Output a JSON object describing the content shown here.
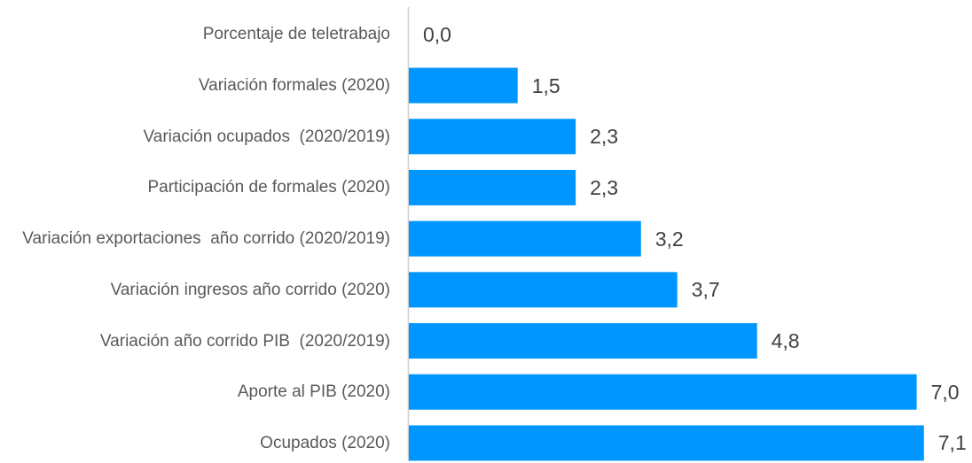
{
  "chart_data": {
    "type": "bar",
    "orientation": "horizontal",
    "categories": [
      "Porcentaje de teletrabajo",
      "Variación formales (2020)",
      "Variación ocupados  (2020/2019)",
      "Participación de formales (2020)",
      "Variación exportaciones  año corrido (2020/2019)",
      "Variación ingresos año corrido (2020)",
      "Variación año corrido PIB  (2020/2019)",
      "Aporte al PIB (2020)",
      "Ocupados (2020)"
    ],
    "values": [
      0.0,
      1.5,
      2.3,
      2.3,
      3.2,
      3.7,
      4.8,
      7.0,
      7.1
    ],
    "value_labels": [
      "0,0",
      "1,5",
      "2,3",
      "2,3",
      "3,2",
      "3,7",
      "4,8",
      "7,0",
      "7,1"
    ],
    "color": "#0096ff"
  }
}
